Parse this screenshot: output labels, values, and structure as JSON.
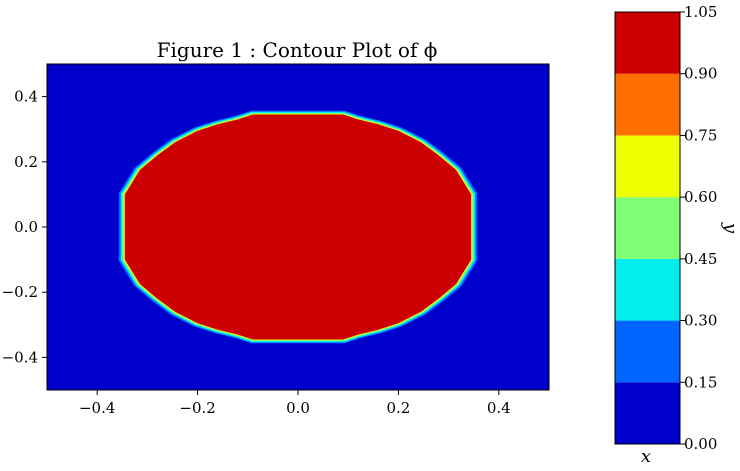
{
  "chart_data": {
    "type": "heatmap",
    "title": "Figure 1 : Contour Plot of ϕ",
    "xlabel": "x",
    "ylabel": "y",
    "xlim": [
      -0.5,
      0.5
    ],
    "ylim": [
      -0.5,
      0.5
    ],
    "x_ticks": [
      -0.4,
      -0.2,
      0.0,
      0.2,
      0.4
    ],
    "y_ticks": [
      -0.4,
      -0.2,
      0.0,
      0.2,
      0.4
    ],
    "x_tick_labels": [
      "−0.4",
      "−0.2",
      "0.0",
      "0.2",
      "0.4"
    ],
    "y_tick_labels": [
      "−0.4",
      "−0.2",
      "0.0",
      "0.2",
      "0.4"
    ],
    "field": {
      "background_value": 0.0,
      "region_value": 1.0,
      "region_shape": "polygonal disk",
      "region_boundary": [
        [
          -0.09,
          0.345
        ],
        [
          0.09,
          0.345
        ],
        [
          0.12,
          0.33
        ],
        [
          0.16,
          0.315
        ],
        [
          0.2,
          0.295
        ],
        [
          0.245,
          0.26
        ],
        [
          0.28,
          0.22
        ],
        [
          0.315,
          0.175
        ],
        [
          0.345,
          0.1
        ],
        [
          0.345,
          -0.1
        ],
        [
          0.315,
          -0.175
        ],
        [
          0.28,
          -0.22
        ],
        [
          0.245,
          -0.26
        ],
        [
          0.2,
          -0.295
        ],
        [
          0.16,
          -0.315
        ],
        [
          0.12,
          -0.33
        ],
        [
          0.09,
          -0.345
        ],
        [
          -0.09,
          -0.345
        ],
        [
          -0.12,
          -0.33
        ],
        [
          -0.16,
          -0.315
        ],
        [
          -0.2,
          -0.295
        ],
        [
          -0.245,
          -0.26
        ],
        [
          -0.28,
          -0.22
        ],
        [
          -0.315,
          -0.175
        ],
        [
          -0.345,
          -0.1
        ],
        [
          -0.345,
          0.1
        ],
        [
          -0.315,
          0.175
        ],
        [
          -0.28,
          0.22
        ],
        [
          -0.245,
          0.26
        ],
        [
          -0.2,
          0.295
        ],
        [
          -0.16,
          0.315
        ],
        [
          -0.12,
          0.33
        ]
      ]
    },
    "colorbar": {
      "levels": [
        0.0,
        0.15,
        0.3,
        0.45,
        0.6,
        0.75,
        0.9,
        1.05
      ],
      "level_labels": [
        "0.00",
        "0.15",
        "0.30",
        "0.45",
        "0.60",
        "0.75",
        "0.90",
        "1.05"
      ],
      "colors": [
        "#0000cc",
        "#0066ff",
        "#00eeee",
        "#80ff74",
        "#eeff00",
        "#ff6e00",
        "#cc0000"
      ]
    },
    "grid": false,
    "legend": "colorbar-right"
  }
}
